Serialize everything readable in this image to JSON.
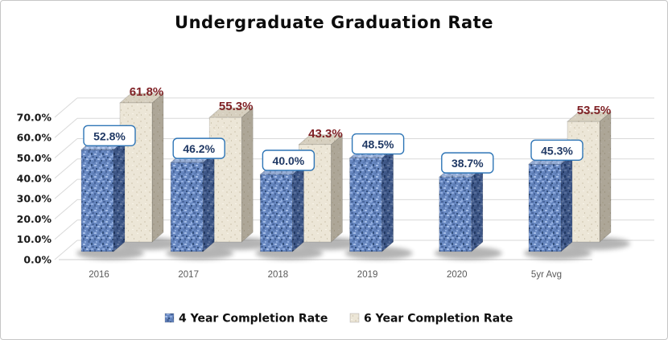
{
  "title": "Undergraduate Graduation Rate",
  "chart_data": {
    "type": "bar",
    "variant": "3d-clustered-column",
    "title": "Undergraduate Graduation Rate",
    "categories": [
      "2016",
      "2017",
      "2018",
      "2019",
      "2020",
      "5yr Avg"
    ],
    "series": [
      {
        "name": "4 Year Completion Rate",
        "color": "#6787c0",
        "values": [
          52.8,
          46.2,
          40.0,
          48.5,
          38.7,
          45.3
        ],
        "labels": [
          "52.8%",
          "46.2%",
          "40.0%",
          "48.5%",
          "38.7%",
          "45.3%"
        ]
      },
      {
        "name": "6 Year Completion Rate",
        "color": "#ece6d7",
        "values": [
          61.8,
          55.3,
          43.3,
          null,
          null,
          53.5
        ],
        "labels": [
          "61.8%",
          "55.3%",
          "43.3%",
          null,
          null,
          "53.5%"
        ]
      }
    ],
    "xlabel": "",
    "ylabel": "",
    "ylim": [
      0,
      70
    ],
    "y_ticks": [
      "0.0%",
      "10.0%",
      "20.0%",
      "30.0%",
      "40.0%",
      "50.0%",
      "60.0%",
      "70.0%"
    ],
    "grid": true,
    "legend_position": "bottom",
    "colors": {
      "series1_fill": "#6787c0",
      "series2_fill": "#ece6d7",
      "series1_label_text": "#1f3864",
      "series1_label_border": "#2e75b6",
      "series2_label_text": "#7f2125",
      "gridline": "#d9d9d9",
      "floor_line": "#cfcfcf",
      "x_tick_text": "#595959",
      "y_tick_text": "#1a1a1a"
    }
  }
}
